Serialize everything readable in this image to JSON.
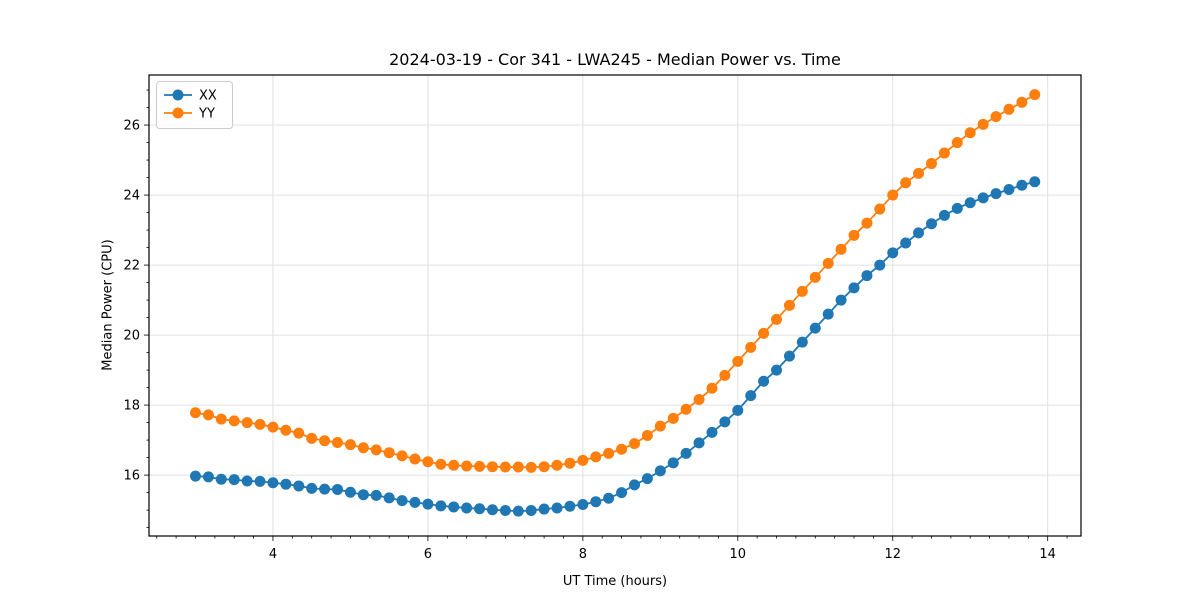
{
  "chart_data": {
    "type": "line",
    "title": "2024-03-19 - Cor 341 - LWA245 - Median Power vs. Time",
    "xlabel": "UT Time (hours)",
    "ylabel": "Median Power (CPU)",
    "xlim": [
      2.4,
      14.43
    ],
    "ylim": [
      14.26,
      27.43
    ],
    "xticks": [
      4,
      6,
      8,
      10,
      12,
      14
    ],
    "yticks": [
      16,
      18,
      20,
      22,
      24,
      26
    ],
    "x_minor_step": 0.25,
    "y_minor_step": 0.5,
    "grid": true,
    "legend": {
      "position": "upper left"
    },
    "marker": "o",
    "series": [
      {
        "name": "XX",
        "color": "#1f77b4",
        "x": [
          3.0,
          3.167,
          3.333,
          3.5,
          3.667,
          3.833,
          4.0,
          4.167,
          4.333,
          4.5,
          4.667,
          4.833,
          5.0,
          5.167,
          5.333,
          5.5,
          5.667,
          5.833,
          6.0,
          6.167,
          6.333,
          6.5,
          6.667,
          6.833,
          7.0,
          7.167,
          7.333,
          7.5,
          7.667,
          7.833,
          8.0,
          8.167,
          8.333,
          8.5,
          8.667,
          8.833,
          9.0,
          9.167,
          9.333,
          9.5,
          9.667,
          9.833,
          10.0,
          10.167,
          10.333,
          10.5,
          10.667,
          10.833,
          11.0,
          11.167,
          11.333,
          11.5,
          11.667,
          11.833,
          12.0,
          12.167,
          12.333,
          12.5,
          12.667,
          12.833,
          13.0,
          13.167,
          13.333,
          13.5,
          13.667,
          13.833
        ],
        "y": [
          15.97,
          15.95,
          15.88,
          15.87,
          15.83,
          15.82,
          15.78,
          15.74,
          15.69,
          15.62,
          15.6,
          15.59,
          15.51,
          15.44,
          15.42,
          15.35,
          15.27,
          15.22,
          15.17,
          15.12,
          15.09,
          15.06,
          15.04,
          15.01,
          14.99,
          14.97,
          14.99,
          15.03,
          15.06,
          15.11,
          15.16,
          15.24,
          15.34,
          15.5,
          15.72,
          15.9,
          16.12,
          16.35,
          16.62,
          16.92,
          17.22,
          17.52,
          17.85,
          18.27,
          18.68,
          19.0,
          19.4,
          19.8,
          20.2,
          20.6,
          21.0,
          21.35,
          21.7,
          22.0,
          22.35,
          22.63,
          22.92,
          23.18,
          23.42,
          23.62,
          23.78,
          23.92,
          24.04,
          24.16,
          24.28,
          24.38
        ]
      },
      {
        "name": "YY",
        "color": "#ff7f0e",
        "x": [
          3.0,
          3.167,
          3.333,
          3.5,
          3.667,
          3.833,
          4.0,
          4.167,
          4.333,
          4.5,
          4.667,
          4.833,
          5.0,
          5.167,
          5.333,
          5.5,
          5.667,
          5.833,
          6.0,
          6.167,
          6.333,
          6.5,
          6.667,
          6.833,
          7.0,
          7.167,
          7.333,
          7.5,
          7.667,
          7.833,
          8.0,
          8.167,
          8.333,
          8.5,
          8.667,
          8.833,
          9.0,
          9.167,
          9.333,
          9.5,
          9.667,
          9.833,
          10.0,
          10.167,
          10.333,
          10.5,
          10.667,
          10.833,
          11.0,
          11.167,
          11.333,
          11.5,
          11.667,
          11.833,
          12.0,
          12.167,
          12.333,
          12.5,
          12.667,
          12.833,
          13.0,
          13.167,
          13.333,
          13.5,
          13.667,
          13.833
        ],
        "y": [
          17.78,
          17.72,
          17.6,
          17.55,
          17.5,
          17.45,
          17.37,
          17.28,
          17.2,
          17.05,
          16.98,
          16.93,
          16.87,
          16.78,
          16.72,
          16.64,
          16.55,
          16.46,
          16.38,
          16.31,
          16.28,
          16.26,
          16.25,
          16.24,
          16.23,
          16.23,
          16.22,
          16.24,
          16.28,
          16.34,
          16.42,
          16.52,
          16.62,
          16.74,
          16.9,
          17.13,
          17.4,
          17.62,
          17.88,
          18.16,
          18.48,
          18.85,
          19.25,
          19.65,
          20.05,
          20.45,
          20.85,
          21.25,
          21.65,
          22.05,
          22.45,
          22.85,
          23.2,
          23.6,
          24.0,
          24.35,
          24.62,
          24.9,
          25.2,
          25.5,
          25.78,
          26.02,
          26.24,
          26.45,
          26.65,
          26.87
        ]
      }
    ],
    "style": {
      "grid_color": "#e0e0e0",
      "spine_color": "#000000",
      "legend_border": "#cccccc",
      "line_width": 1.8,
      "marker_radius": 5.5
    }
  }
}
